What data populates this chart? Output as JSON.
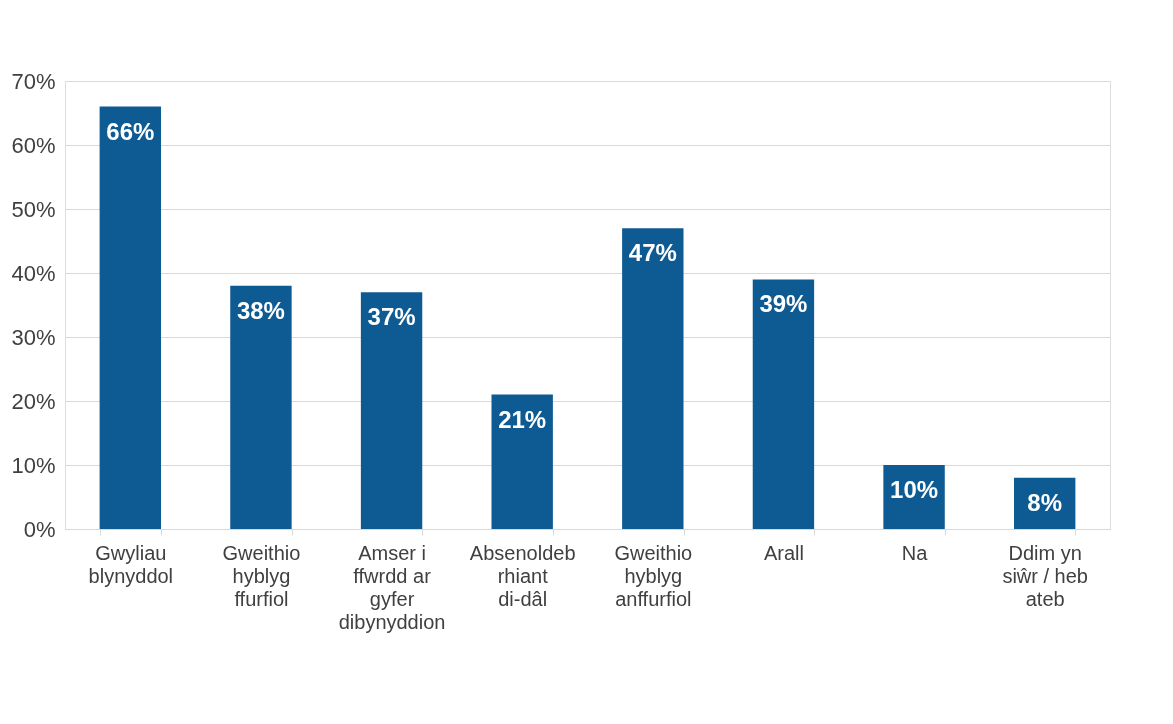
{
  "chart_data": {
    "type": "bar",
    "categories": [
      "Gwyliau blynyddol",
      "Gweithio hyblyg ffurfiol",
      "Amser i ffwrdd ar gyfer dibynyddion",
      "Absenoldeb rhiant di-dâl",
      "Gweithio hyblyg anffurfiol",
      "Arall",
      "Na",
      "Ddim yn siŵr / heb ateb"
    ],
    "values": [
      66,
      38,
      37,
      21,
      47,
      39,
      10,
      8
    ],
    "value_labels": [
      "66%",
      "38%",
      "37%",
      "21%",
      "47%",
      "39%",
      "10%",
      "8%"
    ],
    "color": "#0e5a92",
    "ylim": [
      0,
      70
    ],
    "yticks": [
      {
        "value": 0,
        "label": "0%"
      },
      {
        "value": 10,
        "label": "10%"
      },
      {
        "value": 20,
        "label": "20%"
      },
      {
        "value": 30,
        "label": "30%"
      },
      {
        "value": 40,
        "label": "40%"
      },
      {
        "value": 50,
        "label": "50%"
      },
      {
        "value": 60,
        "label": "60%"
      },
      {
        "value": 70,
        "label": "70%"
      }
    ],
    "grid": "y"
  }
}
